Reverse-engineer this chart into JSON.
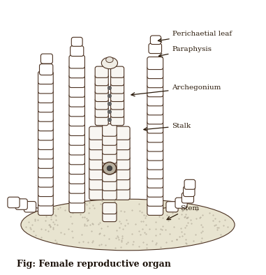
{
  "title": "Fig: Female reproductive organ",
  "labels": {
    "perichaetial_leaf": "Perichaetial leaf",
    "paraphysis": "Paraphysis",
    "archegonium": "Archegonium",
    "stalk": "Stalk",
    "stem": "Stem"
  },
  "bg_color": "#ffffff",
  "line_color": "#4a3020",
  "stem_fill": "#e8e4d8",
  "cell_fill": "#ffffff",
  "fig_width": 3.81,
  "fig_height": 3.94,
  "dpi": 100
}
